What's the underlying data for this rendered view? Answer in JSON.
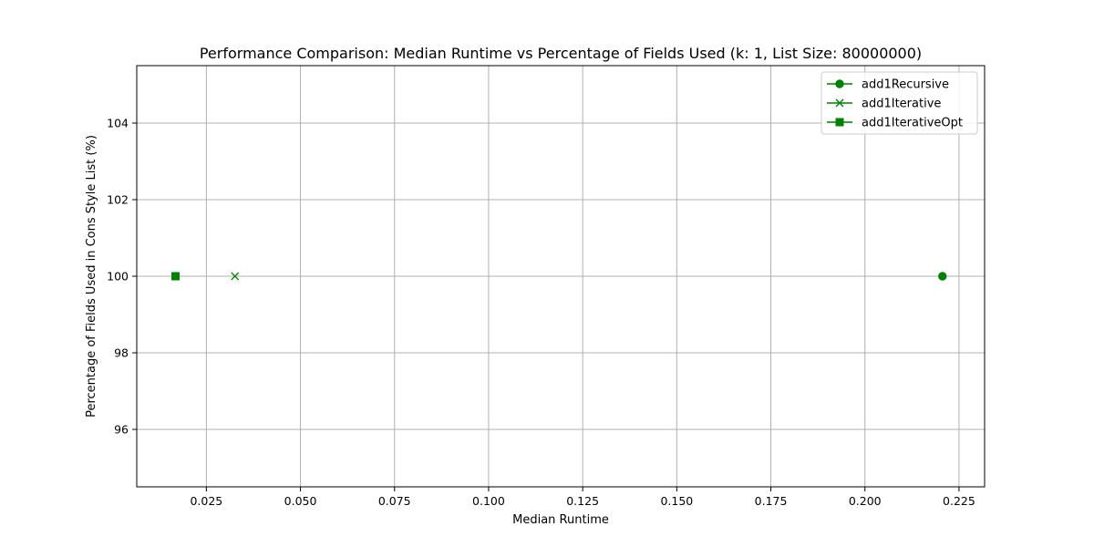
{
  "chart_data": {
    "type": "scatter",
    "title": "Performance Comparison: Median Runtime vs Percentage of Fields Used (k: 1, List Size: 80000000)",
    "xlabel": "Median Runtime",
    "ylabel": "Percentage of Fields Used in Cons Style List (%)",
    "xlim": [
      0.0065,
      0.2318
    ],
    "ylim": [
      94.5,
      105.5
    ],
    "xticks": [
      "0.025",
      "0.050",
      "0.075",
      "0.100",
      "0.125",
      "0.150",
      "0.175",
      "0.200",
      "0.225"
    ],
    "xtick_values": [
      0.025,
      0.05,
      0.075,
      0.1,
      0.125,
      0.15,
      0.175,
      0.2,
      0.225
    ],
    "yticks": [
      "96",
      "98",
      "100",
      "102",
      "104"
    ],
    "ytick_values": [
      96,
      98,
      100,
      102,
      104
    ],
    "grid": true,
    "legend_position": "top-right",
    "color": "#008000",
    "series": [
      {
        "name": "add1Recursive",
        "marker": "circle",
        "x": [
          0.2206
        ],
        "y": [
          100
        ]
      },
      {
        "name": "add1Iterative",
        "marker": "x",
        "x": [
          0.0326
        ],
        "y": [
          100
        ]
      },
      {
        "name": "add1IterativeOpt",
        "marker": "square",
        "x": [
          0.0168
        ],
        "y": [
          100
        ]
      }
    ]
  }
}
